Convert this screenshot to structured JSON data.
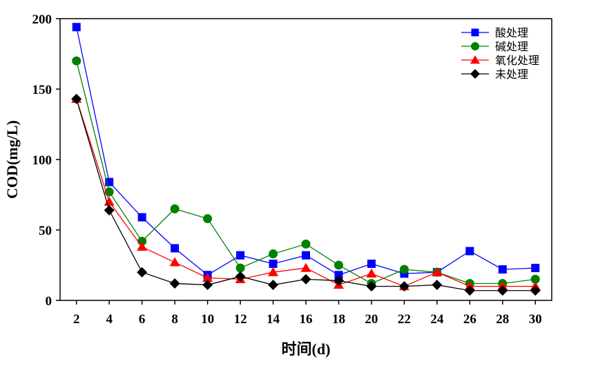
{
  "chart_data": {
    "type": "line",
    "title": "",
    "xlabel": "时间(d)",
    "ylabel": "COD(mg/L)",
    "x": [
      2,
      4,
      6,
      8,
      10,
      12,
      14,
      16,
      18,
      20,
      22,
      24,
      26,
      28,
      30
    ],
    "xlim": [
      1,
      31
    ],
    "ylim": [
      0,
      200
    ],
    "xticks": [
      "2",
      "4",
      "6",
      "8",
      "10",
      "12",
      "14",
      "16",
      "18",
      "20",
      "22",
      "24",
      "26",
      "28",
      "30"
    ],
    "yticks": [
      "0",
      "50",
      "100",
      "150",
      "200"
    ],
    "grid": false,
    "legend_position": "top-right",
    "series": [
      {
        "name": "酸处理",
        "color": "#0000ff",
        "marker": "square",
        "values": [
          194,
          84,
          59,
          37,
          18,
          32,
          26,
          32,
          18,
          26,
          19,
          20,
          35,
          22,
          23
        ]
      },
      {
        "name": "碱处理",
        "color": "#008000",
        "marker": "circle",
        "values": [
          170,
          77,
          42,
          65,
          58,
          23,
          33,
          40,
          25,
          12,
          22,
          20,
          12,
          12,
          15
        ]
      },
      {
        "name": "氧化处理",
        "color": "#ff0000",
        "marker": "triangle",
        "values": [
          143,
          70,
          38,
          27,
          16,
          15,
          20,
          23,
          11,
          19,
          10,
          20,
          10,
          10,
          10
        ]
      },
      {
        "name": "未处理",
        "color": "#000000",
        "marker": "diamond",
        "values": [
          143,
          64,
          20,
          12,
          11,
          17,
          11,
          15,
          14,
          10,
          10,
          11,
          7,
          7,
          7
        ]
      }
    ]
  }
}
